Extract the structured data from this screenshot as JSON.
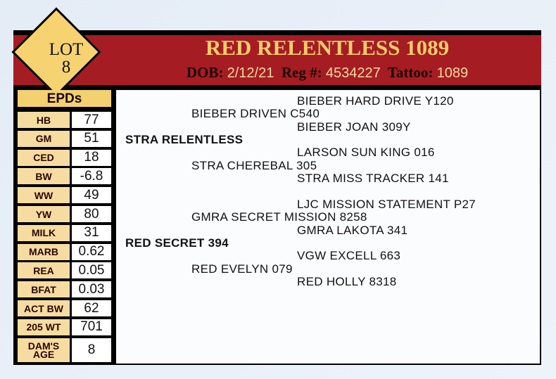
{
  "lot": {
    "label": "LOT",
    "number": "8"
  },
  "header": {
    "name": "RED RELENTLESS 1089",
    "dob_label": "DOB:",
    "dob": "2/12/21",
    "reg_label": "Reg #:",
    "reg": "4534227",
    "tattoo_label": "Tattoo:",
    "tattoo": "1089"
  },
  "epds": {
    "title": "EPDs",
    "rows": [
      {
        "label": "HB",
        "value": "77"
      },
      {
        "label": "GM",
        "value": "51"
      },
      {
        "label": "CED",
        "value": "18"
      },
      {
        "label": "BW",
        "value": "-6.8"
      },
      {
        "label": "WW",
        "value": "49"
      },
      {
        "label": "YW",
        "value": "80"
      },
      {
        "label": "MILK",
        "value": "31"
      },
      {
        "label": "MARB",
        "value": "0.62"
      },
      {
        "label": "REA",
        "value": "0.05"
      },
      {
        "label": "BFAT",
        "value": "0.03"
      },
      {
        "label": "ACT BW",
        "value": "62"
      },
      {
        "label": "205 WT",
        "value": "701"
      },
      {
        "label": "DAM'S AGE",
        "value": "8"
      }
    ]
  },
  "pedigree": {
    "sire": "STRA RELENTLESS",
    "sire_sire": "BIEBER DRIVEN C540",
    "sire_sire_sire": "BIEBER HARD DRIVE Y120",
    "sire_sire_dam": "BIEBER JOAN 309Y",
    "sire_dam": "STRA CHEREBAL 305",
    "sire_dam_sire": "LARSON SUN KING 016",
    "sire_dam_dam": "STRA MISS TRACKER 141",
    "dam": "RED SECRET 394",
    "dam_sire": "GMRA SECRET MISSION 8258",
    "dam_sire_sire": "LJC MISSION STATEMENT P27",
    "dam_sire_dam": "GMRA LAKOTA 341",
    "dam_dam": "RED EVELYN 079",
    "dam_dam_sire": "VGW EXCELL 663",
    "dam_dam_dam": "RED HOLLY 8318"
  },
  "colors": {
    "header_red": "#a51d23",
    "gold": "#f7cd6b",
    "label_bg": "#f6dca0"
  }
}
